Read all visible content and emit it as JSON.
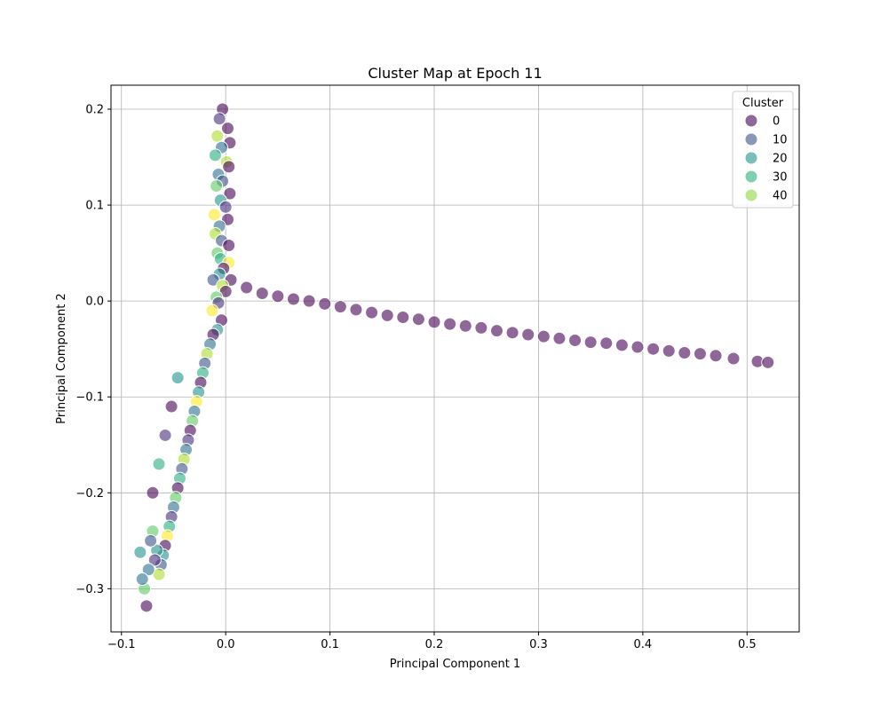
{
  "chart_data": {
    "type": "scatter",
    "title": "Cluster Map at Epoch 11",
    "xlabel": "Principal Component 1",
    "ylabel": "Principal Component 2",
    "xlim": [
      -0.11,
      0.55
    ],
    "ylim": [
      -0.345,
      0.225
    ],
    "xticks": [
      -0.1,
      0.0,
      0.1,
      0.2,
      0.3,
      0.4,
      0.5
    ],
    "xtick_labels": [
      "−0.1",
      "0.0",
      "0.1",
      "0.2",
      "0.3",
      "0.4",
      "0.5"
    ],
    "yticks": [
      -0.3,
      -0.2,
      -0.1,
      0.0,
      0.1,
      0.2
    ],
    "ytick_labels": [
      "−0.3",
      "−0.2",
      "−0.1",
      "0.0",
      "0.1",
      "0.2"
    ],
    "grid": true,
    "legend": {
      "title": "Cluster",
      "placement": "top-right",
      "entries": [
        {
          "label": "0",
          "color": "#440154"
        },
        {
          "label": "10",
          "color": "#3b528b"
        },
        {
          "label": "20",
          "color": "#21918c"
        },
        {
          "label": "30",
          "color": "#2bb07f"
        },
        {
          "label": "40",
          "color": "#8fd744"
        }
      ]
    },
    "colormap": [
      "#440154",
      "#472d7b",
      "#3b528b",
      "#2c728e",
      "#21918c",
      "#28ae80",
      "#5ec962",
      "#addc30",
      "#fde725"
    ],
    "cluster_range": [
      0,
      47
    ],
    "point_alpha": 0.6,
    "series": [
      {
        "structure": "horizontal-arm",
        "cluster": 0,
        "x": [
          0.005,
          0.02,
          0.035,
          0.05,
          0.065,
          0.08,
          0.095,
          0.11,
          0.125,
          0.14,
          0.155,
          0.17,
          0.185,
          0.2,
          0.215,
          0.23,
          0.245,
          0.26,
          0.275,
          0.29,
          0.305,
          0.32,
          0.335,
          0.35,
          0.365,
          0.38,
          0.395,
          0.41,
          0.425,
          0.44,
          0.455,
          0.47,
          0.487,
          0.51,
          0.52
        ],
        "y": [
          0.022,
          0.014,
          0.008,
          0.005,
          0.002,
          0.0,
          -0.003,
          -0.006,
          -0.009,
          -0.012,
          -0.015,
          -0.017,
          -0.019,
          -0.022,
          -0.024,
          -0.026,
          -0.028,
          -0.031,
          -0.033,
          -0.035,
          -0.037,
          -0.039,
          -0.041,
          -0.043,
          -0.044,
          -0.046,
          -0.048,
          -0.05,
          -0.052,
          -0.054,
          -0.055,
          -0.057,
          -0.06,
          -0.063,
          -0.064
        ]
      },
      {
        "structure": "vertical-arm",
        "clusters": [
          0,
          8,
          2,
          40,
          0,
          15,
          30,
          44,
          0,
          20,
          12,
          38,
          0,
          25,
          5,
          46,
          0,
          18,
          42,
          10,
          0,
          35,
          28,
          47,
          0,
          22,
          14,
          40,
          0,
          33,
          8,
          45,
          0,
          26
        ],
        "x": [
          -0.003,
          -0.006,
          0.002,
          -0.008,
          0.004,
          -0.004,
          -0.01,
          0.001,
          0.003,
          -0.007,
          -0.003,
          -0.009,
          0.004,
          -0.005,
          0.0,
          -0.011,
          0.002,
          -0.006,
          -0.01,
          -0.004,
          0.003,
          -0.008,
          -0.005,
          0.003,
          -0.002,
          -0.006,
          -0.012,
          -0.003,
          0.0,
          -0.009,
          -0.007,
          -0.013,
          -0.004,
          -0.008
        ],
        "y": [
          0.2,
          0.19,
          0.18,
          0.172,
          0.165,
          0.16,
          0.152,
          0.145,
          0.14,
          0.132,
          0.125,
          0.12,
          0.112,
          0.105,
          0.098,
          0.09,
          0.085,
          0.078,
          0.07,
          0.063,
          0.058,
          0.05,
          0.044,
          0.04,
          0.034,
          0.028,
          0.022,
          0.016,
          0.01,
          0.004,
          -0.002,
          -0.01,
          -0.02,
          -0.03
        ]
      },
      {
        "structure": "lower-left-arm",
        "clusters": [
          0,
          20,
          40,
          10,
          30,
          0,
          25,
          45,
          15,
          35,
          0,
          5,
          20,
          42,
          12,
          28,
          0,
          38,
          18,
          8,
          30,
          46,
          0,
          22,
          14,
          40,
          26,
          4,
          33,
          10,
          20,
          0,
          36,
          16,
          24,
          2,
          30,
          8,
          0,
          22
        ],
        "x": [
          -0.012,
          -0.015,
          -0.018,
          -0.02,
          -0.022,
          -0.024,
          -0.026,
          -0.028,
          -0.03,
          -0.032,
          -0.034,
          -0.036,
          -0.038,
          -0.04,
          -0.042,
          -0.044,
          -0.046,
          -0.048,
          -0.05,
          -0.052,
          -0.054,
          -0.056,
          -0.058,
          -0.06,
          -0.062,
          -0.064,
          -0.066,
          -0.068,
          -0.07,
          -0.072,
          -0.074,
          -0.076,
          -0.078,
          -0.08,
          -0.082,
          -0.07,
          -0.064,
          -0.058,
          -0.052,
          -0.046
        ],
        "y": [
          -0.035,
          -0.045,
          -0.055,
          -0.065,
          -0.075,
          -0.085,
          -0.095,
          -0.105,
          -0.115,
          -0.125,
          -0.135,
          -0.145,
          -0.155,
          -0.165,
          -0.175,
          -0.185,
          -0.195,
          -0.205,
          -0.215,
          -0.225,
          -0.235,
          -0.245,
          -0.255,
          -0.265,
          -0.275,
          -0.285,
          -0.26,
          -0.27,
          -0.24,
          -0.25,
          -0.28,
          -0.318,
          -0.3,
          -0.29,
          -0.262,
          -0.2,
          -0.17,
          -0.14,
          -0.11,
          -0.08
        ]
      }
    ]
  }
}
